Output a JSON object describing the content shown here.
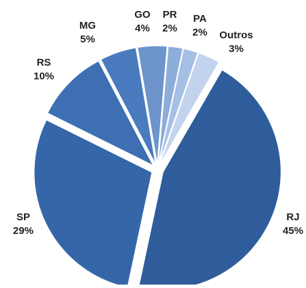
{
  "chart_data": {
    "type": "pie",
    "categories": [
      "RJ",
      "SP",
      "RS",
      "MG",
      "GO",
      "PR",
      "PA",
      "Outros"
    ],
    "values": [
      45,
      29,
      10,
      5,
      4,
      2,
      2,
      3
    ],
    "value_labels": [
      "45%",
      "29%",
      "10%",
      "5%",
      "4%",
      "2%",
      "2%",
      "3%"
    ],
    "colors": [
      "#2f5d9b",
      "#3566a8",
      "#3d6fb2",
      "#4a7bbe",
      "#6d94cb",
      "#8dadda",
      "#a6bfe4",
      "#c2d3ee"
    ]
  }
}
